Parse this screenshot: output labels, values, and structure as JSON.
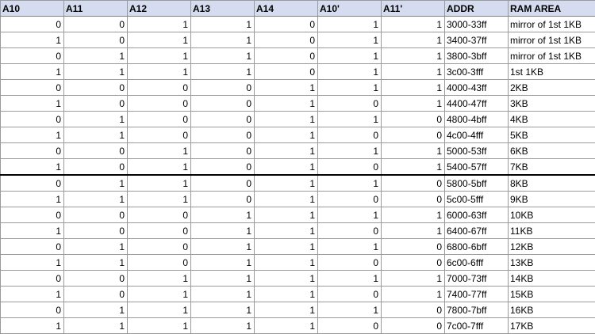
{
  "headers": [
    "A10",
    "A11",
    "A12",
    "A13",
    "A14",
    "A10'",
    "A11'",
    "ADDR",
    "RAM AREA"
  ],
  "rows": [
    [
      "0",
      "0",
      "1",
      "1",
      "0",
      "1",
      "1",
      "3000-33ff",
      "mirror of 1st 1KB"
    ],
    [
      "1",
      "0",
      "1",
      "1",
      "0",
      "1",
      "1",
      "3400-37ff",
      "mirror of 1st 1KB"
    ],
    [
      "0",
      "1",
      "1",
      "1",
      "0",
      "1",
      "1",
      "3800-3bff",
      "mirror of 1st 1KB"
    ],
    [
      "1",
      "1",
      "1",
      "1",
      "0",
      "1",
      "1",
      "3c00-3fff",
      "1st 1KB"
    ],
    [
      "0",
      "0",
      "0",
      "0",
      "1",
      "1",
      "1",
      "4000-43ff",
      "2KB"
    ],
    [
      "1",
      "0",
      "0",
      "0",
      "1",
      "0",
      "1",
      "4400-47ff",
      "3KB"
    ],
    [
      "0",
      "1",
      "0",
      "0",
      "1",
      "1",
      "0",
      "4800-4bff",
      "4KB"
    ],
    [
      "1",
      "1",
      "0",
      "0",
      "1",
      "0",
      "0",
      "4c00-4fff",
      "5KB"
    ],
    [
      "0",
      "0",
      "1",
      "0",
      "1",
      "1",
      "1",
      "5000-53ff",
      "6KB"
    ],
    [
      "1",
      "0",
      "1",
      "0",
      "1",
      "0",
      "1",
      "5400-57ff",
      "7KB"
    ],
    [
      "0",
      "1",
      "1",
      "0",
      "1",
      "1",
      "0",
      "5800-5bff",
      "8KB"
    ],
    [
      "1",
      "1",
      "1",
      "0",
      "1",
      "0",
      "0",
      "5c00-5fff",
      "9KB"
    ],
    [
      "0",
      "0",
      "0",
      "1",
      "1",
      "1",
      "1",
      "6000-63ff",
      "10KB"
    ],
    [
      "1",
      "0",
      "0",
      "1",
      "1",
      "0",
      "1",
      "6400-67ff",
      "11KB"
    ],
    [
      "0",
      "1",
      "0",
      "1",
      "1",
      "1",
      "0",
      "6800-6bff",
      "12KB"
    ],
    [
      "1",
      "1",
      "0",
      "1",
      "1",
      "0",
      "0",
      "6c00-6fff",
      "13KB"
    ],
    [
      "0",
      "0",
      "1",
      "1",
      "1",
      "1",
      "1",
      "7000-73ff",
      "14KB"
    ],
    [
      "1",
      "0",
      "1",
      "1",
      "1",
      "0",
      "1",
      "7400-77ff",
      "15KB"
    ],
    [
      "0",
      "1",
      "1",
      "1",
      "1",
      "1",
      "0",
      "7800-7bff",
      "16KB"
    ],
    [
      "1",
      "1",
      "1",
      "1",
      "1",
      "0",
      "0",
      "7c00-7fff",
      "17KB"
    ]
  ],
  "colors": {
    "header_bg": "#d6dcef",
    "grid": "#9a9a9a",
    "separator": "#000000"
  }
}
